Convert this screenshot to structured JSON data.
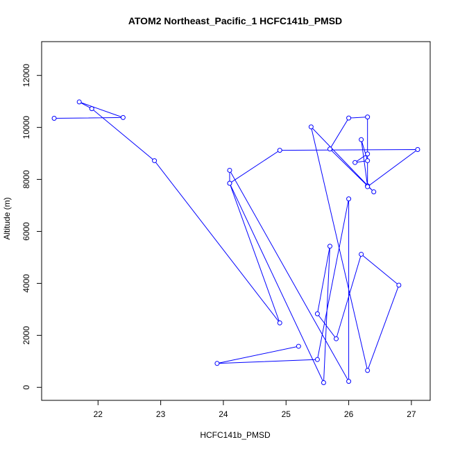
{
  "chart_data": {
    "type": "line",
    "title": "ATOM2 Northeast_Pacific_1 HCFC141b_PMSD",
    "xlabel": "HCFC141b_PMSD",
    "ylabel": "Altitude (m)",
    "xlim": [
      21.1,
      27.3
    ],
    "ylim": [
      -500,
      13300
    ],
    "xticks": [
      22,
      23,
      24,
      25,
      26,
      27
    ],
    "yticks": [
      0,
      2000,
      4000,
      6000,
      8000,
      10000,
      12000
    ],
    "grid": false,
    "legend": "none",
    "markers": "open-circle",
    "series_color": "#0000ff",
    "series": [
      {
        "points": [
          [
            21.3,
            10350
          ],
          [
            22.4,
            10380
          ],
          [
            21.7,
            10980
          ],
          [
            21.9,
            10720
          ],
          [
            22.9,
            8720
          ],
          [
            24.9,
            2480
          ],
          [
            24.1,
            7850
          ],
          [
            25.6,
            180
          ],
          [
            25.7,
            5430
          ],
          [
            25.5,
            2830
          ],
          [
            25.8,
            1870
          ],
          [
            26.2,
            5120
          ],
          [
            26.8,
            3930
          ],
          [
            26.3,
            650
          ],
          [
            25.4,
            10020
          ],
          [
            26.4,
            7520
          ],
          [
            26.3,
            7750
          ],
          [
            26.3,
            10400
          ],
          [
            26.0,
            10360
          ],
          [
            25.7,
            9170
          ],
          [
            26.3,
            7750
          ],
          [
            26.2,
            9530
          ],
          [
            26.3,
            8720
          ],
          [
            26.1,
            8650
          ],
          [
            26.3,
            8980
          ],
          [
            26.3,
            7720
          ],
          [
            27.1,
            9150
          ],
          [
            24.9,
            9120
          ],
          [
            24.1,
            7850
          ],
          [
            24.1,
            8350
          ],
          [
            26.0,
            230
          ],
          [
            26.0,
            7250
          ],
          [
            25.5,
            1070
          ],
          [
            23.9,
            920
          ],
          [
            25.2,
            1580
          ]
        ]
      }
    ]
  }
}
